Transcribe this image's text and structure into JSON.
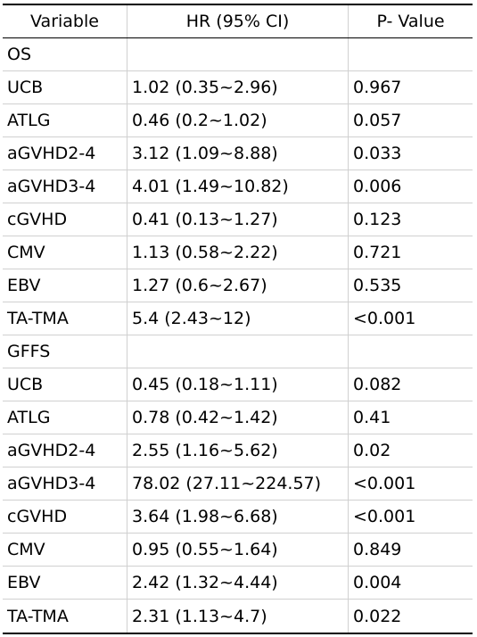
{
  "table": {
    "headers": [
      "Variable",
      "HR (95% CI)",
      "P- Value"
    ],
    "rows": [
      [
        "OS",
        "",
        ""
      ],
      [
        "UCB",
        "1.02 (0.35~2.96)",
        "0.967"
      ],
      [
        "ATLG",
        "0.46 (0.2~1.02)",
        "0.057"
      ],
      [
        "aGVHD2-4",
        "3.12 (1.09~8.88)",
        "0.033"
      ],
      [
        "aGVHD3-4",
        "4.01 (1.49~10.82)",
        "0.006"
      ],
      [
        "cGVHD",
        "0.41 (0.13~1.27)",
        "0.123"
      ],
      [
        "CMV",
        "1.13 (0.58~2.22)",
        "0.721"
      ],
      [
        "EBV",
        "1.27 (0.6~2.67)",
        "0.535"
      ],
      [
        "TA-TMA",
        "5.4 (2.43~12)",
        "<0.001"
      ],
      [
        "GFFS",
        "",
        ""
      ],
      [
        "UCB",
        "0.45 (0.18~1.11)",
        "0.082"
      ],
      [
        "ATLG",
        "0.78 (0.42~1.42)",
        "0.41"
      ],
      [
        "aGVHD2-4",
        "2.55 (1.16~5.62)",
        "0.02"
      ],
      [
        "aGVHD3-4",
        "78.02 (27.11~224.57)",
        "<0.001"
      ],
      [
        "cGVHD",
        "3.64 (1.98~6.68)",
        "<0.001"
      ],
      [
        "CMV",
        "0.95 (0.55~1.64)",
        "0.849"
      ],
      [
        "EBV",
        "2.42 (1.32~4.44)",
        "0.004"
      ],
      [
        "TA-TMA",
        "2.31 (1.13~4.7)",
        "0.022"
      ]
    ]
  }
}
